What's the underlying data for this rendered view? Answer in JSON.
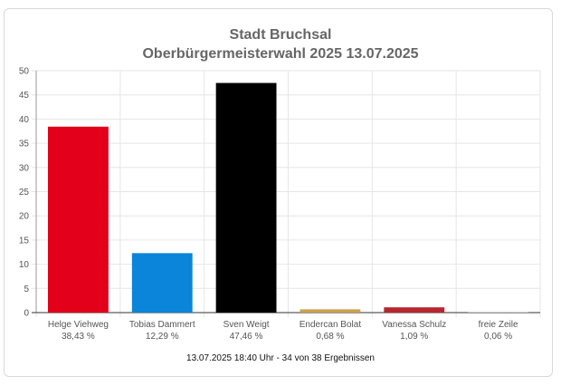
{
  "title": "Stadt Bruchsal",
  "subtitle": "Oberbürgermeisterwahl 2025 13.07.2025",
  "footer": "13.07.2025 18:40 Uhr - 34 von 38 Ergebnissen",
  "chart_data": {
    "type": "bar",
    "title": "Stadt Bruchsal",
    "subtitle": "Oberbürgermeisterwahl 2025 13.07.2025",
    "categories": [
      "Helge Viehweg",
      "Tobias Dammert",
      "Sven Weigt",
      "Endercan Bolat",
      "Vanessa Schulz",
      "freie Zeile"
    ],
    "value_labels": [
      "38,43 %",
      "12,29 %",
      "47,46 %",
      "0,68 %",
      "1,09 %",
      "0,06 %"
    ],
    "values": [
      38.43,
      12.29,
      47.46,
      0.68,
      1.09,
      0.06
    ],
    "colors": [
      "#e2001a",
      "#0a85d9",
      "#000000",
      "#c9a24f",
      "#b7262f",
      "#cccccc"
    ],
    "ylim": [
      0,
      50
    ],
    "yticks": [
      0,
      5,
      10,
      15,
      20,
      25,
      30,
      35,
      40,
      45,
      50
    ],
    "grid": true,
    "legend": "none"
  }
}
